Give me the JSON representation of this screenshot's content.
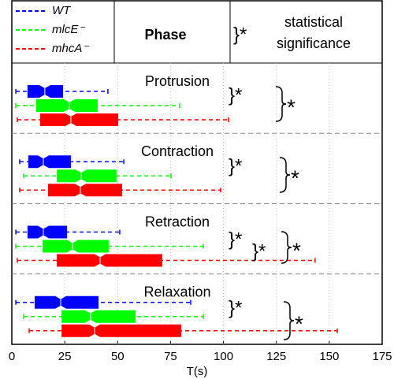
{
  "chart_data": {
    "type": "boxplot",
    "header_title": "Phase",
    "significance_symbol": "}*",
    "significance_label": [
      "statistical",
      "significance"
    ],
    "categories": [
      "Protrusion",
      "Contraction",
      "Retraction",
      "Relaxation"
    ],
    "series": [
      {
        "name": "WT",
        "color": "#0000ff",
        "boxes": [
          {
            "whislo": 1.9,
            "q1": 7.4,
            "med": 15.6,
            "q3": 24.2,
            "whishi": 45.4
          },
          {
            "whislo": 3.7,
            "q1": 7.8,
            "med": 14.9,
            "q3": 27.9,
            "whishi": 52.9
          },
          {
            "whislo": 1.9,
            "q1": 7.4,
            "med": 14.9,
            "q3": 26.1,
            "whishi": 51
          },
          {
            "whislo": 1.9,
            "q1": 10.8,
            "med": 23.1,
            "q3": 41,
            "whishi": 84.5
          }
        ]
      },
      {
        "name": "mlcE⁻",
        "color": "#00ff00",
        "boxes": [
          {
            "whislo": 1.9,
            "q1": 11.5,
            "med": 27.2,
            "q3": 40.6,
            "whishi": 79.3
          },
          {
            "whislo": 5.6,
            "q1": 21.2,
            "med": 32.8,
            "q3": 49.5,
            "whishi": 75.2
          },
          {
            "whislo": 1.9,
            "q1": 14.5,
            "med": 28.7,
            "q3": 45.8,
            "whishi": 90.5
          },
          {
            "whislo": 5.6,
            "q1": 23.5,
            "med": 37.2,
            "q3": 58.5,
            "whishi": 90.5
          }
        ]
      },
      {
        "name": "mhcA⁻",
        "color": "#ff0000",
        "boxes": [
          {
            "whislo": 2.6,
            "q1": 13.4,
            "med": 27.9,
            "q3": 50.3,
            "whishi": 102.4
          },
          {
            "whislo": 3.7,
            "q1": 17.1,
            "med": 32.4,
            "q3": 52.1,
            "whishi": 98.7
          },
          {
            "whislo": 2.6,
            "q1": 21.2,
            "med": 41.7,
            "q3": 71.1,
            "whishi": 143.3
          },
          {
            "whislo": 8.2,
            "q1": 23.5,
            "med": 39.1,
            "q3": 80,
            "whishi": 153.8
          }
        ]
      }
    ],
    "annotations": [
      "}*",
      "}*",
      "}*",
      "}*",
      "}*",
      "*",
      "*",
      "*",
      "*"
    ],
    "xlabel": "T(s)",
    "xlim": [
      0,
      175
    ],
    "xticks": [
      0,
      25,
      50,
      75,
      100,
      125,
      150,
      175
    ],
    "grid": true
  }
}
